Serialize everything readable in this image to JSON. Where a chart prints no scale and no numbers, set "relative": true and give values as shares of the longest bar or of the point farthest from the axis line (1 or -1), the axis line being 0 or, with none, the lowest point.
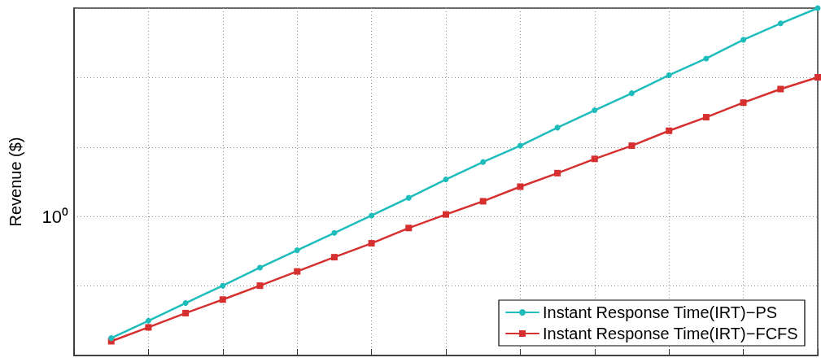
{
  "chart_data": {
    "type": "line",
    "ylabel": "Revenue ($)",
    "grid": true,
    "legend": "bottom right",
    "relative": true,
    "categories": [
      null,
      null,
      null,
      null,
      null,
      null,
      null,
      null,
      null,
      null,
      null,
      null,
      null,
      null,
      null,
      null,
      null,
      null,
      null,
      null,
      null
    ],
    "annotations": [
      "10⁰"
    ],
    "series": [
      {
        "name": "Instant Response Time(IRT)−PS",
        "color": "#1fbcbc",
        "marker": "circle",
        "values": [
          null,
          0.05,
          0.1,
          0.151,
          0.201,
          0.253,
          0.303,
          0.353,
          0.403,
          0.454,
          0.507,
          0.557,
          0.604,
          0.656,
          0.706,
          0.755,
          0.807,
          0.855,
          0.909,
          0.956,
          1
        ]
      },
      {
        "name": "Instant Response Time(IRT)−FCFS",
        "color": "#d62f2f",
        "marker": "square",
        "values": [
          null,
          0.041,
          0.081,
          0.122,
          0.161,
          0.201,
          0.242,
          0.283,
          0.323,
          0.367,
          0.406,
          0.444,
          0.486,
          0.525,
          0.566,
          0.604,
          0.647,
          0.686,
          0.728,
          0.767,
          0.801
        ]
      }
    ]
  }
}
